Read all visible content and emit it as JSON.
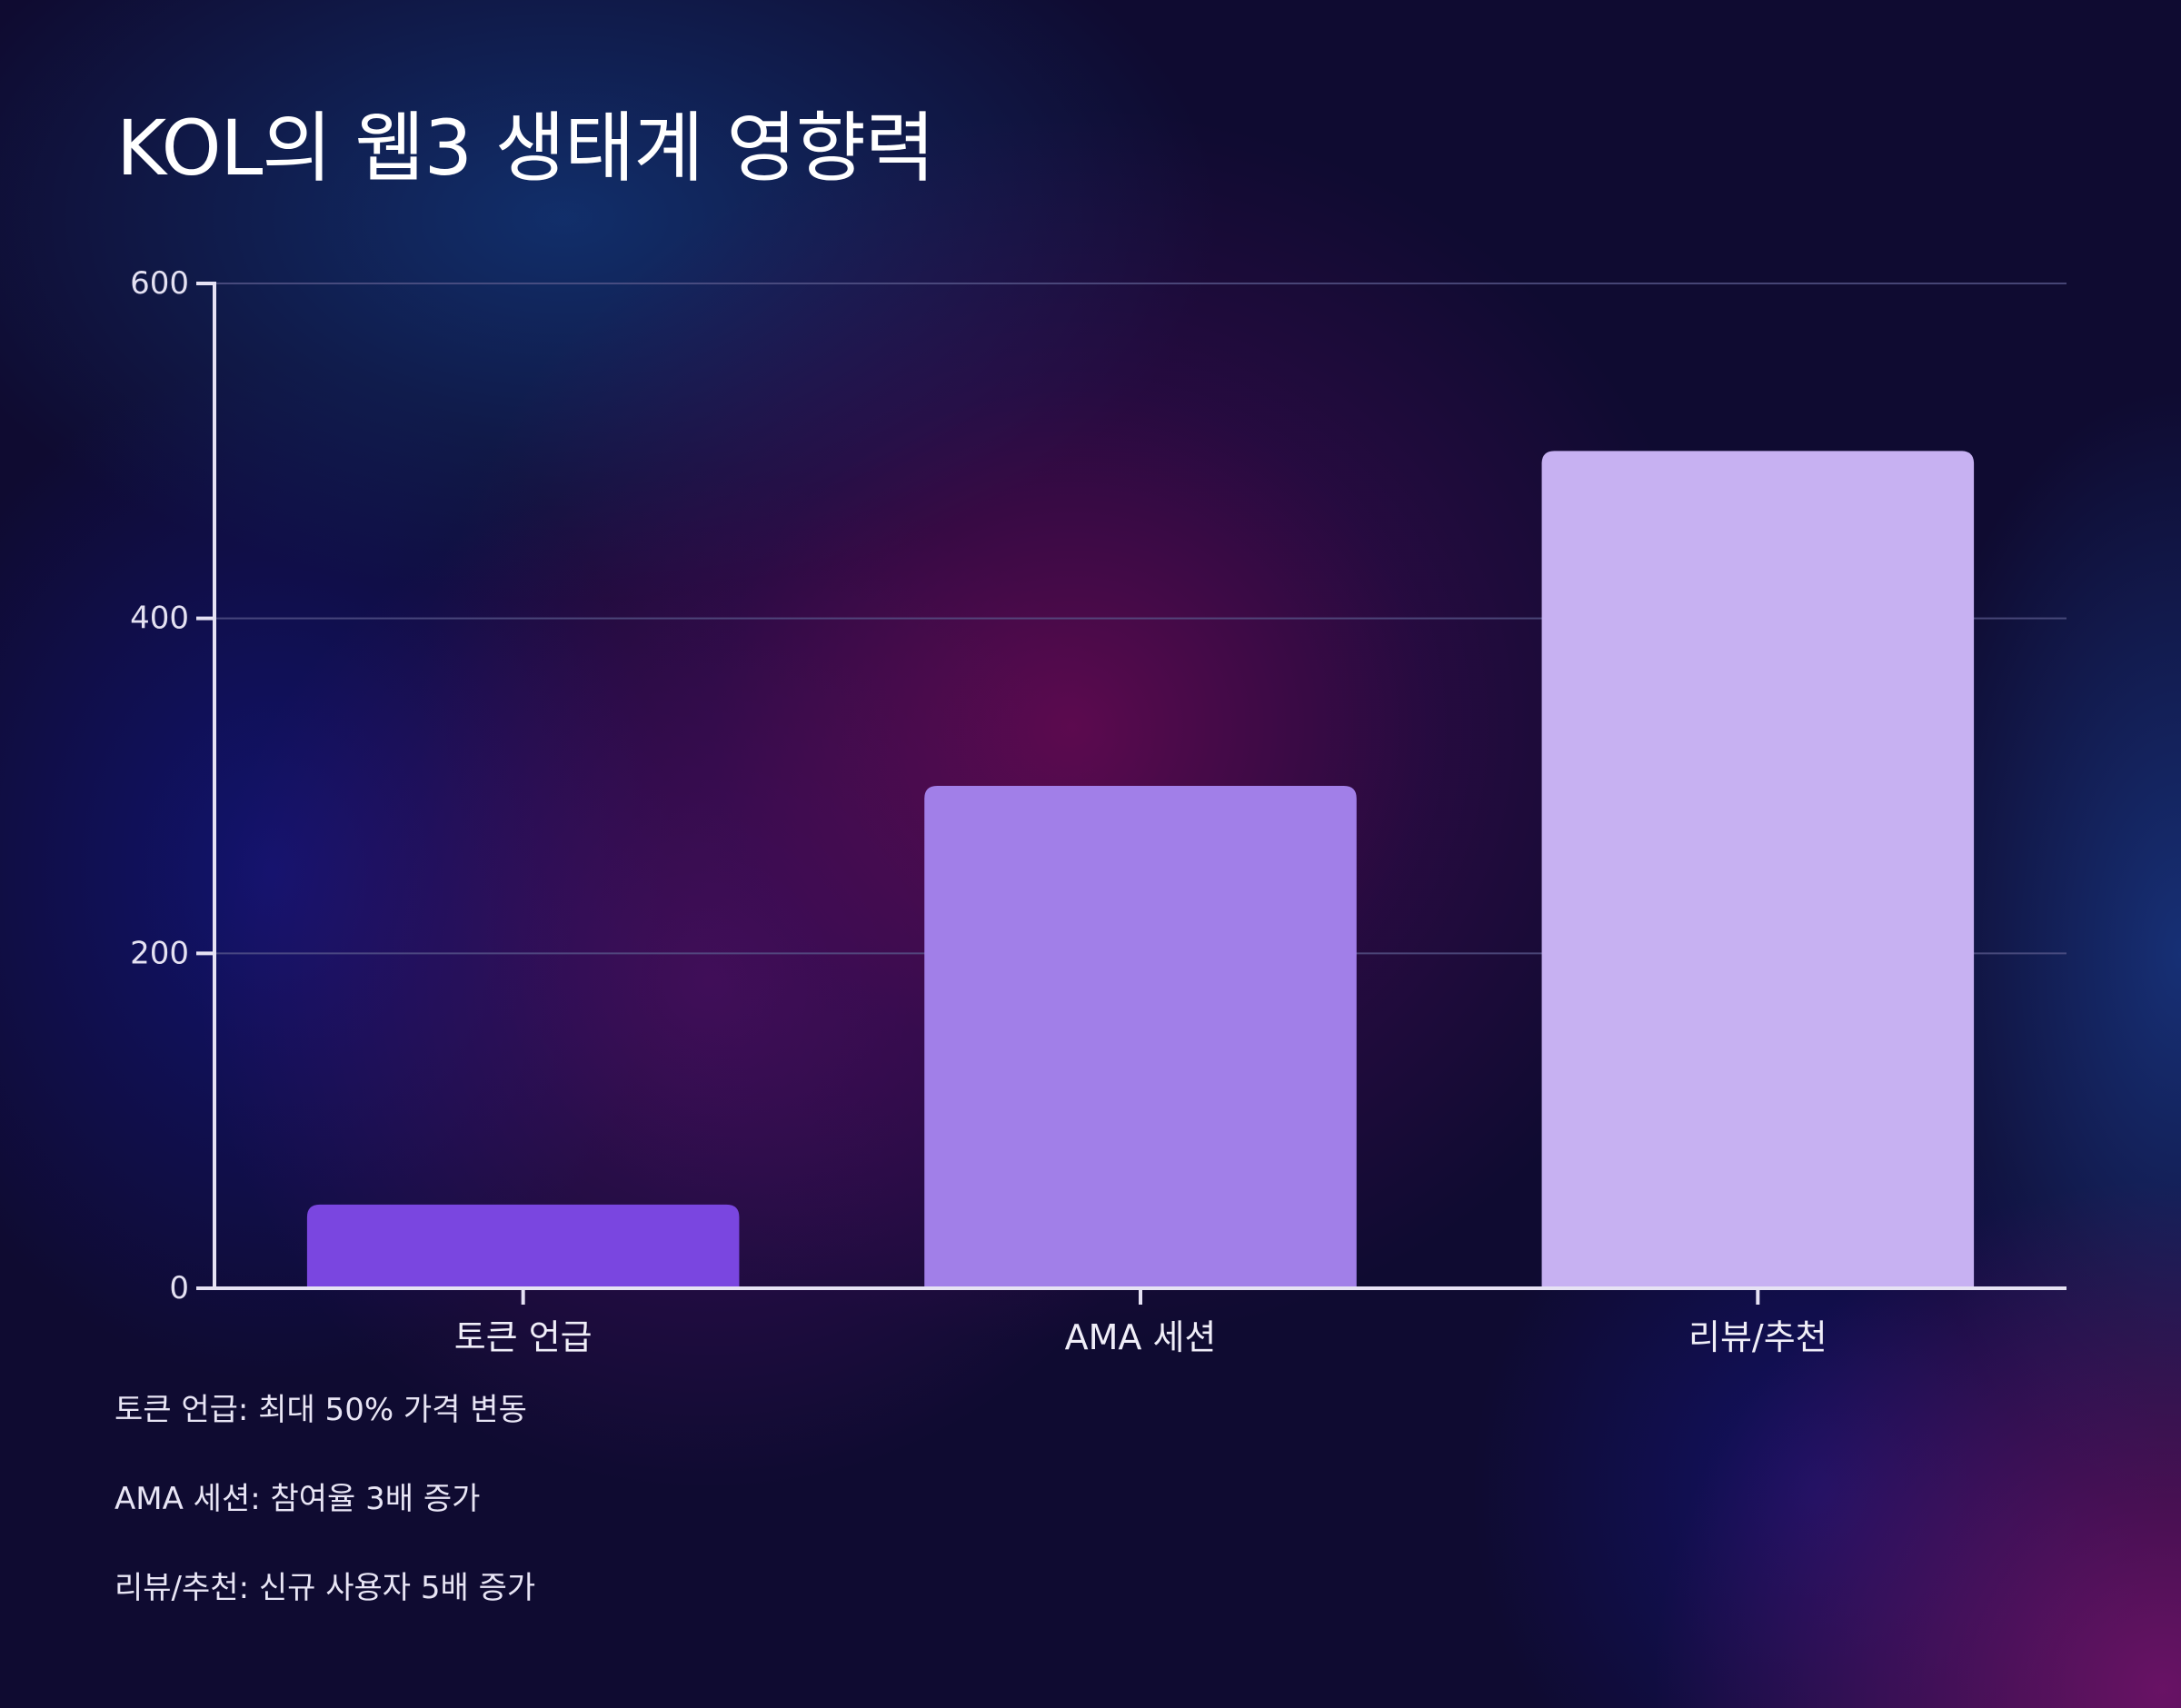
{
  "title": "KOL의 웹3 생태계 영향력",
  "chart_data": {
    "type": "bar",
    "title": "KOL의 웹3 생태계 영향력",
    "xlabel": "",
    "ylabel": "",
    "categories": [
      "토큰 언급",
      "AMA 세션",
      "리뷰/추천"
    ],
    "values": [
      50,
      300,
      500
    ],
    "colors": [
      "#7a46e0",
      "#a17fe8",
      "#c7b1f2"
    ],
    "ylim": [
      0,
      600
    ],
    "yticks": [
      0,
      200,
      400,
      600
    ],
    "grid": true
  },
  "notes": [
    "토큰 언급: 최대 50% 가격 변동",
    "AMA 세션: 참여율 3배 증가",
    "리뷰/추천: 신규 사용자 5배 증가"
  ],
  "colors": {
    "axis": "#e6e2f4",
    "grid": "#5a5a8c",
    "background": "#0f0b31"
  }
}
